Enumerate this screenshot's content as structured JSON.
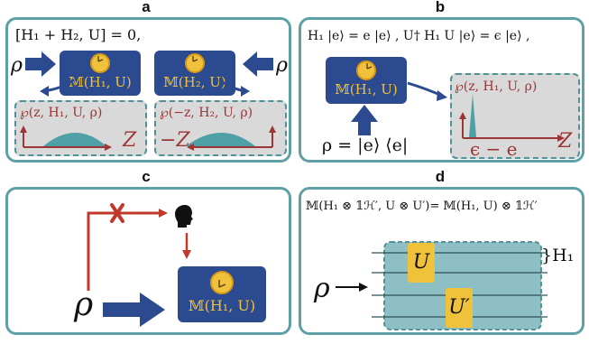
{
  "panel_labels": {
    "a": "a",
    "b": "b",
    "c": "c",
    "d": "d"
  },
  "panel_a": {
    "commutator": "[H₁ + H₂, U] = 0,",
    "rho_left": "ρ",
    "rho_right": "ρ",
    "box_left": "𝕄(H₁, U)",
    "box_right": "𝕄(H₂, U)",
    "dist_left": "℘(z, H₁, U, ρ)",
    "dist_right": "℘(−z, H₂, U, ρ)",
    "axis_left": "Z",
    "axis_right": "−Z"
  },
  "panel_b": {
    "eigen_eq": "H₁ |e⟩ = e |e⟩ , U† H₁ U |e⟩ = ϵ |e⟩ ,",
    "box": "𝕄(H₁, U)",
    "dist": "℘(z, H₁, U, ρ)",
    "axis_z": "Z",
    "axis_value": "ϵ − e",
    "rho_state": "ρ = |e⟩ ⟨e|"
  },
  "panel_c": {
    "rho": "ρ",
    "box": "𝕄(H₁, U)"
  },
  "panel_d": {
    "tensor_eq": "𝕄(H₁ ⊗ 𝟙ℋ′, U ⊗ U′)= 𝕄(H₁, U) ⊗ 𝟙ℋ′",
    "rho": "ρ",
    "gate_u": "U",
    "gate_u_prime": "U′",
    "brace_label": "}H₁"
  },
  "colors": {
    "panel_border": "#5f9fa6",
    "measure_box": "#2c4a8f",
    "gold": "#f0c23b",
    "axis_red": "#9c3535",
    "distribution_teal": "#4f9fa6",
    "dashed_box": "#d9d9d9",
    "circuit_teal": "#8ebfc4"
  }
}
